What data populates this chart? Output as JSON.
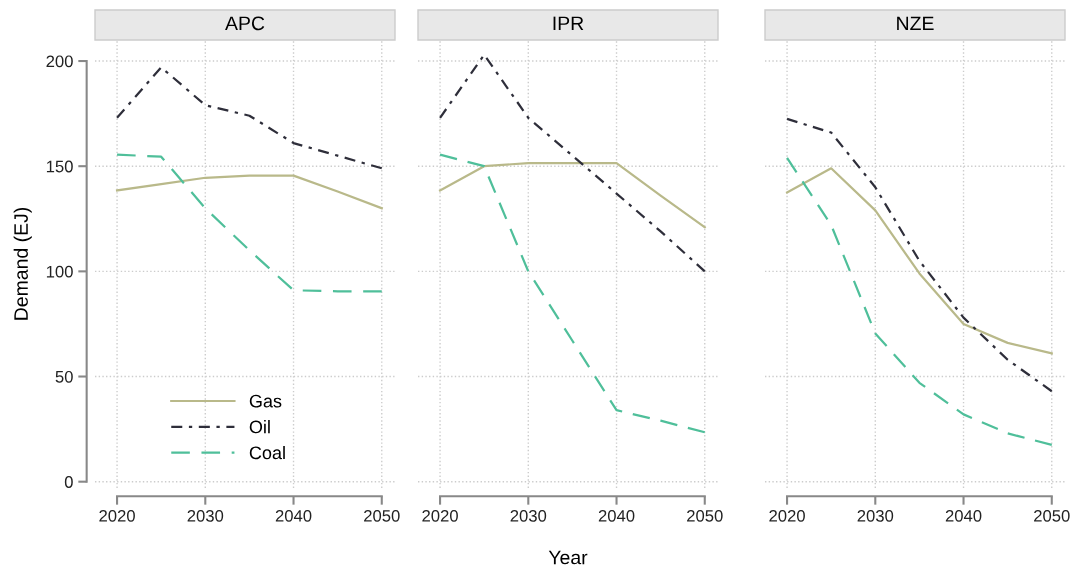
{
  "chart_data": [
    {
      "type": "line",
      "title": "APC",
      "ylabel": "Demand (EJ)",
      "x": [
        2020,
        2025,
        2030,
        2035,
        2040,
        2045,
        2050
      ],
      "xlim": [
        2017.5,
        2051.5
      ],
      "xticks": [
        2020,
        2030,
        2040,
        2050
      ],
      "ylim": [
        -3,
        210
      ],
      "yticks": [
        0,
        50,
        100,
        150,
        200
      ],
      "grid": true,
      "legend": "bottom left",
      "series": [
        {
          "name": "Gas",
          "color": "#b9b98a",
          "line_style": "solid",
          "values": [
            138.5,
            141.5,
            144.5,
            145.5,
            145.5,
            138,
            130
          ]
        },
        {
          "name": "Oil",
          "color": "#2e2e3a",
          "line_style": "dashdot",
          "values": [
            173,
            197,
            179,
            174,
            161,
            155,
            149
          ]
        },
        {
          "name": "Coal",
          "color": "#4fbf9a",
          "line_style": "dashed",
          "values": [
            155.5,
            154.5,
            130,
            110,
            91,
            90.5,
            90.5
          ]
        }
      ]
    },
    {
      "type": "line",
      "title": "IPR",
      "xlabel": "Year",
      "x": [
        2020,
        2025,
        2030,
        2035,
        2040,
        2045,
        2050
      ],
      "xlim": [
        2017.5,
        2051.5
      ],
      "xticks": [
        2020,
        2030,
        2040,
        2050
      ],
      "ylim": [
        -3,
        210
      ],
      "yticks": [
        0,
        50,
        100,
        150,
        200
      ],
      "grid": true,
      "tick_labels": "x",
      "series": [
        {
          "color": "#b9b98a",
          "line_style": "solid",
          "values": [
            138.5,
            150,
            151.5,
            151.5,
            151.5,
            136,
            121
          ]
        },
        {
          "color": "#2e2e3a",
          "line_style": "dashdot",
          "values": [
            173,
            203,
            173,
            155,
            137,
            119,
            100
          ]
        },
        {
          "color": "#4fbf9a",
          "line_style": "dashed",
          "values": [
            155.5,
            150,
            100,
            67,
            34,
            29,
            23.5
          ]
        }
      ]
    },
    {
      "type": "line",
      "title": "NZE",
      "x": [
        2020,
        2025,
        2030,
        2035,
        2040,
        2045,
        2050
      ],
      "xlim": [
        2017.5,
        2051.5
      ],
      "xticks": [
        2020,
        2030,
        2040,
        2050
      ],
      "ylim": [
        -3,
        210
      ],
      "yticks": [
        0,
        50,
        100,
        150,
        200
      ],
      "grid": true,
      "tick_labels": "x",
      "series": [
        {
          "color": "#b9b98a",
          "line_style": "solid",
          "values": [
            137.5,
            149,
            129,
            99,
            75,
            66,
            61
          ]
        },
        {
          "color": "#2e2e3a",
          "line_style": "dashdot",
          "values": [
            172.5,
            166,
            140,
            105,
            78,
            58,
            43
          ]
        },
        {
          "color": "#4fbf9a",
          "line_style": "dashed",
          "values": [
            154,
            122,
            70.5,
            47,
            32,
            23,
            17.5
          ]
        }
      ]
    }
  ]
}
